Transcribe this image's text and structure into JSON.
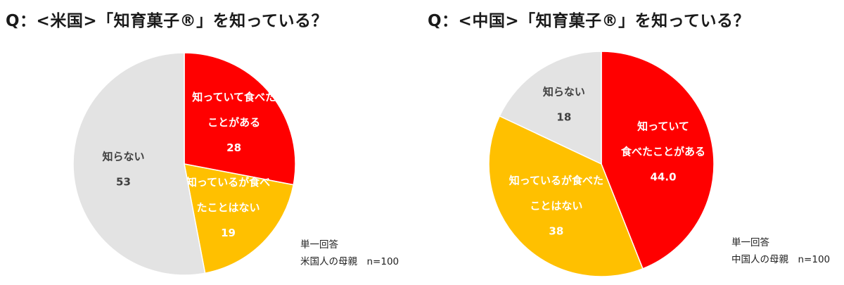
{
  "chart_data": [
    {
      "type": "pie",
      "title": "Q：<米国>「知育菓子®」を知っている？",
      "slices": [
        {
          "label_lines": [
            "知っていて食べた",
            "ことがある"
          ],
          "value": 28,
          "value_text": "28",
          "color": "#ff0000",
          "text_color": "#ffffff"
        },
        {
          "label_lines": [
            "知っているが食べ",
            "たことはない"
          ],
          "value": 19,
          "value_text": "19",
          "color": "#ffc000",
          "text_color": "#ffffff"
        },
        {
          "label_lines": [
            "知らない"
          ],
          "value": 53,
          "value_text": "53",
          "color": "#e3e3e3",
          "text_color": "#404040"
        }
      ],
      "note": [
        "単一回答",
        "米国人の母親　n=100"
      ]
    },
    {
      "type": "pie",
      "title": "Q：<中国>「知育菓子®」を知っている？",
      "slices": [
        {
          "label_lines": [
            "知っていて",
            "食べたことがある"
          ],
          "value": 44.0,
          "value_text": "44.0",
          "color": "#ff0000",
          "text_color": "#ffffff"
        },
        {
          "label_lines": [
            "知っているが食べた",
            "ことはない"
          ],
          "value": 38,
          "value_text": "38",
          "color": "#ffc000",
          "text_color": "#ffffff"
        },
        {
          "label_lines": [
            "知らない"
          ],
          "value": 18,
          "value_text": "18",
          "color": "#e3e3e3",
          "text_color": "#404040"
        }
      ],
      "note": [
        "単一回答",
        "中国人の母親　n=100"
      ]
    }
  ]
}
